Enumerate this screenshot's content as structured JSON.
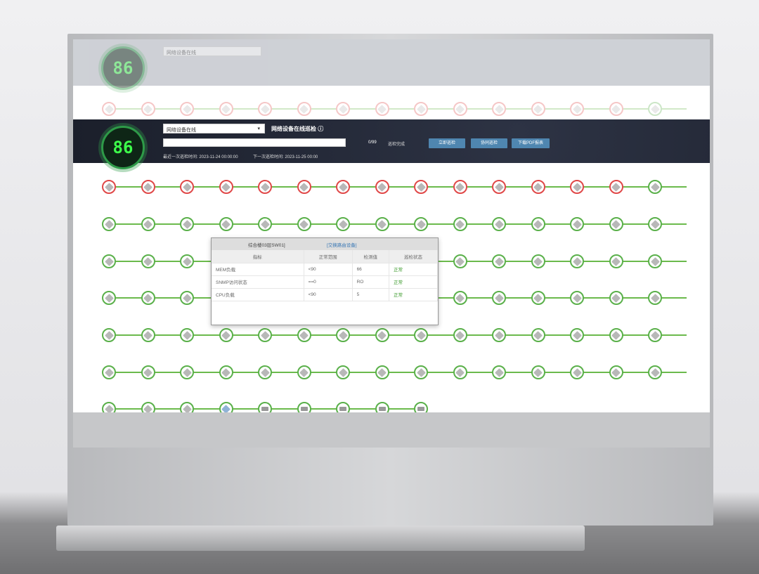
{
  "header": {
    "score": "86",
    "dropdown": "网络设备在线",
    "title": "网络设备在线巡检",
    "info_icon": "ⓘ",
    "progress": "0/99",
    "progress_value": 0,
    "status": "巡检完成",
    "last_time": "最近一次巡检时间: 2023-11-24 00:00:00",
    "next_time": "下一次巡检时间: 2023-11-25 00:00",
    "buttons": [
      "立即巡检",
      "协同巡检",
      "下载PDF报表"
    ]
  },
  "colors": {
    "ok": "#5ab04a",
    "error": "#e04848",
    "header_bg": "#1b1f2b",
    "button": "#4f86b0"
  },
  "grid": {
    "rows": [
      [
        "red",
        "red",
        "red",
        "red",
        "red",
        "red",
        "red",
        "red",
        "red",
        "red",
        "red",
        "red",
        "red",
        "red",
        "green"
      ],
      [
        "green",
        "green",
        "green",
        "green",
        "green",
        "green",
        "green",
        "green",
        "green",
        "green",
        "green",
        "green",
        "green",
        "green",
        "green"
      ],
      [
        "green",
        "green",
        "green",
        "green",
        "green",
        "green",
        "green",
        "green",
        "green",
        "green",
        "green",
        "green",
        "green",
        "green",
        "green"
      ],
      [
        "green",
        "green",
        "green",
        "green",
        "green",
        "green",
        "green",
        "green",
        "green",
        "green",
        "green",
        "green",
        "green",
        "green",
        "green"
      ],
      [
        "green",
        "green",
        "green",
        "green",
        "green",
        "green",
        "green",
        "green",
        "green",
        "green",
        "green",
        "green",
        "green",
        "green",
        "green"
      ],
      [
        "green",
        "green",
        "green",
        "green",
        "green",
        "green",
        "green",
        "green",
        "green",
        "green",
        "green",
        "green",
        "green",
        "green",
        "green"
      ],
      [
        "green",
        "green",
        "green",
        "blue",
        "server",
        "server",
        "server",
        "server",
        "server"
      ]
    ]
  },
  "tooltip": {
    "device": "综合楼03层SW01]",
    "type": "[交换路由设备]",
    "columns": [
      "指标",
      "正常范围",
      "检测值",
      "巡检状态"
    ],
    "rows": [
      [
        "MEM负载",
        "<90",
        "66",
        "正常"
      ],
      [
        "SNMP访问状态",
        "==0",
        "RO",
        "正常"
      ],
      [
        "CPU负载",
        "<90",
        "5",
        "正常"
      ]
    ]
  }
}
